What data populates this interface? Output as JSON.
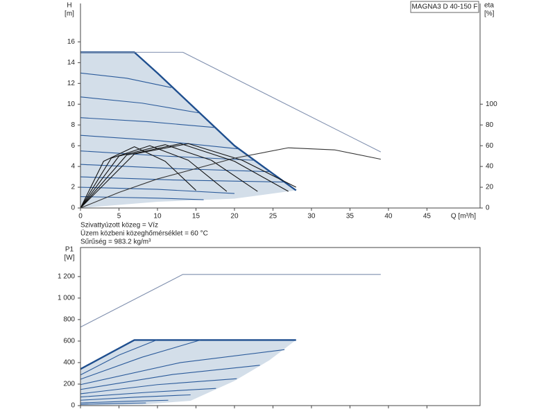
{
  "chart_data": [
    {
      "type": "line",
      "model": "MAGNA3 D 40-150 F",
      "ylabel": "H",
      "yunit": "[m]",
      "y2label": "eta",
      "y2unit": "[%]",
      "xlabel": "Q [m³/h]",
      "notes": [
        "Szivattyúzott közeg = Víz",
        "Üzem közbeni közeghőmérséklet = 60 °C",
        "Sűrűség = 983.2 kg/m³"
      ],
      "xlim": [
        0,
        51.9
      ],
      "xticks": [
        0,
        5,
        10,
        15,
        20,
        25,
        30,
        35,
        40,
        45
      ],
      "xtick_labels": true,
      "ylim": [
        0,
        19.7
      ],
      "yticks": [
        0,
        2,
        4,
        6,
        8,
        10,
        12,
        14,
        16
      ],
      "y2lim": [
        0,
        197
      ],
      "y2ticks": [
        0,
        20,
        40,
        60,
        80,
        100
      ],
      "frame": "open",
      "fill_between": {
        "series": [
          0,
          1
        ],
        "color": "#d3dee9"
      },
      "series": [
        {
          "style": "bold",
          "color": "#1f4f8f",
          "x": [
            0,
            7,
            10,
            15,
            20,
            25,
            28
          ],
          "values": [
            15,
            15,
            13,
            9.5,
            6,
            3.3,
            1.7
          ]
        },
        {
          "style": "none",
          "color": "#1f4f8f",
          "x": [
            0,
            10,
            20,
            28
          ],
          "values": [
            0,
            0.6,
            0.9,
            1.7
          ]
        },
        {
          "style": "thin",
          "color": "#7f8fae",
          "x": [
            0,
            13.3,
            39
          ],
          "values": [
            15,
            15,
            5.4
          ]
        },
        {
          "style": "thin",
          "color": "#2a5a9a",
          "x": [
            0,
            6,
            11.8
          ],
          "values": [
            13,
            12.5,
            11.6
          ]
        },
        {
          "style": "thin",
          "color": "#2a5a9a",
          "x": [
            0,
            8,
            15.5
          ],
          "values": [
            10.7,
            10.1,
            9.15
          ]
        },
        {
          "style": "thin",
          "color": "#2a5a9a",
          "x": [
            0,
            9,
            17.5
          ],
          "values": [
            8.7,
            8.3,
            7.75
          ]
        },
        {
          "style": "thin",
          "color": "#2a5a9a",
          "x": [
            0,
            10,
            20.5
          ],
          "values": [
            7,
            6.5,
            5.7
          ]
        },
        {
          "style": "thin",
          "color": "#2a5a9a",
          "x": [
            0,
            11,
            22.5
          ],
          "values": [
            5.5,
            5,
            4.6
          ]
        },
        {
          "style": "thin",
          "color": "#2a5a9a",
          "x": [
            0,
            12,
            24.5
          ],
          "values": [
            4.2,
            3.8,
            3.5
          ]
        },
        {
          "style": "thin",
          "color": "#2a5a9a",
          "x": [
            0,
            12,
            26.5
          ],
          "values": [
            3,
            2.7,
            2.5
          ]
        },
        {
          "style": "thin",
          "color": "#2a5a9a",
          "x": [
            0,
            10,
            20
          ],
          "values": [
            2,
            1.8,
            1.4
          ]
        },
        {
          "style": "thin",
          "color": "#2a5a9a",
          "x": [
            0,
            10,
            16
          ],
          "values": [
            1.1,
            0.95,
            0.8
          ]
        },
        {
          "style": "thin",
          "color": "#111111",
          "x": [
            0,
            3,
            7,
            11,
            15
          ],
          "values": [
            0,
            4.5,
            5.9,
            4.5,
            1.7
          ]
        },
        {
          "style": "thin",
          "color": "#111111",
          "x": [
            0,
            4,
            9,
            14,
            19
          ],
          "values": [
            0,
            4.8,
            6,
            4.6,
            1.6
          ]
        },
        {
          "style": "thin",
          "color": "#111111",
          "x": [
            0,
            5,
            11,
            17,
            23
          ],
          "values": [
            0,
            5,
            6.1,
            4.6,
            1.6
          ]
        },
        {
          "style": "thin",
          "color": "#111111",
          "x": [
            0,
            6,
            13,
            20,
            27
          ],
          "values": [
            0,
            5.1,
            6.2,
            4.5,
            1.6
          ]
        },
        {
          "style": "thin",
          "color": "#111111",
          "x": [
            0,
            7,
            14,
            21,
            28
          ],
          "values": [
            0,
            5.2,
            6.2,
            4.6,
            2
          ]
        },
        {
          "style": "thin",
          "color": "#333333",
          "axis": "y2",
          "x": [
            0,
            5,
            10,
            20,
            27,
            33,
            39
          ],
          "values": [
            0,
            15,
            28,
            48,
            58,
            56,
            47
          ]
        }
      ]
    },
    {
      "type": "line",
      "ylabel": "P1",
      "yunit": "[W]",
      "xlim": [
        0,
        51.9
      ],
      "xticks": [
        0,
        5,
        10,
        15,
        20,
        25,
        30,
        35,
        40,
        45
      ],
      "xtick_labels": false,
      "ylim": [
        0,
        1470
      ],
      "yticks": [
        0,
        200,
        400,
        600,
        800,
        {
          "value": 1000,
          "label": "1 000"
        },
        {
          "value": 1200,
          "label": "1 200"
        }
      ],
      "frame": "box",
      "fill_between": {
        "series": [
          0,
          1
        ],
        "color": "#d3dee9"
      },
      "series": [
        {
          "style": "bold",
          "color": "#1f4f8f",
          "x": [
            0,
            7,
            28
          ],
          "values": [
            340,
            610,
            610
          ]
        },
        {
          "style": "none",
          "color": "#1f4f8f",
          "x": [
            0,
            8,
            14.3,
            20,
            24.5,
            28
          ],
          "values": [
            0,
            10,
            45,
            230,
            420,
            610
          ]
        },
        {
          "style": "thin",
          "color": "#7f8fae",
          "x": [
            0,
            13.3,
            39
          ],
          "values": [
            730,
            1220,
            1220
          ]
        },
        {
          "style": "thin",
          "color": "#2a5a9a",
          "x": [
            0,
            5,
            9.9
          ],
          "values": [
            285,
            470,
            610
          ]
        },
        {
          "style": "thin",
          "color": "#2a5a9a",
          "x": [
            0,
            8,
            15.6
          ],
          "values": [
            245,
            450,
            610
          ]
        },
        {
          "style": "thin",
          "color": "#2a5a9a",
          "x": [
            0,
            13,
            26.5
          ],
          "values": [
            195,
            400,
            520
          ]
        },
        {
          "style": "thin",
          "color": "#2a5a9a",
          "x": [
            0,
            12,
            23.3
          ],
          "values": [
            150,
            290,
            375
          ]
        },
        {
          "style": "thin",
          "color": "#2a5a9a",
          "x": [
            0,
            10,
            20.3
          ],
          "values": [
            110,
            195,
            250
          ]
        },
        {
          "style": "thin",
          "color": "#2a5a9a",
          "x": [
            0,
            9,
            17.6
          ],
          "values": [
            80,
            125,
            160
          ]
        },
        {
          "style": "thin",
          "color": "#2a5a9a",
          "x": [
            0,
            7,
            14.3
          ],
          "values": [
            50,
            78,
            100
          ]
        },
        {
          "style": "thin",
          "color": "#2a5a9a",
          "x": [
            0,
            6,
            11.4
          ],
          "values": [
            25,
            40,
            50
          ]
        },
        {
          "style": "thin",
          "color": "#2a5a9a",
          "x": [
            0,
            4,
            8.5
          ],
          "values": [
            12,
            19,
            25
          ]
        }
      ]
    }
  ]
}
